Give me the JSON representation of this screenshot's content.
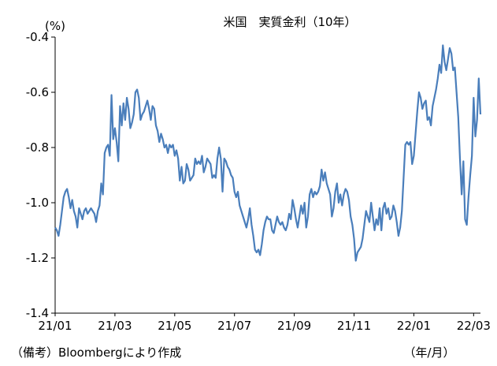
{
  "chart_data": {
    "type": "line",
    "title": "米国　実質金利（10年）",
    "ylabel": "(%)",
    "xlabel": "（年/月）",
    "ylim": [
      -1.4,
      -0.4
    ],
    "yticks": [
      -0.4,
      -0.6,
      -0.8,
      -1.0,
      -1.2,
      -1.4
    ],
    "ytick_labels": [
      "-0.4",
      "-0.6",
      "-0.8",
      "-1.0",
      "-1.2",
      "-1.4"
    ],
    "xticks": [
      "21/01",
      "21/03",
      "21/05",
      "21/07",
      "21/09",
      "21/11",
      "22/01",
      "22/03"
    ],
    "grid": false,
    "legend": "none",
    "source": "（備考）Bloombergにより作成",
    "series": [
      {
        "color": "#4a7ebb",
        "points": [
          [
            0,
            -1.09
          ],
          [
            1,
            -1.1
          ],
          [
            2,
            -1.12
          ],
          [
            3,
            -1.08
          ],
          [
            4,
            -1.03
          ],
          [
            5,
            -0.98
          ],
          [
            6,
            -0.96
          ],
          [
            7,
            -0.95
          ],
          [
            8,
            -0.98
          ],
          [
            9,
            -1.02
          ],
          [
            10,
            -0.99
          ],
          [
            11,
            -1.03
          ],
          [
            12,
            -1.05
          ],
          [
            13,
            -1.09
          ],
          [
            14,
            -1.02
          ],
          [
            15,
            -1.04
          ],
          [
            16,
            -1.06
          ],
          [
            17,
            -1.03
          ],
          [
            18,
            -1.02
          ],
          [
            19,
            -1.04
          ],
          [
            20,
            -1.03
          ],
          [
            21,
            -1.02
          ],
          [
            22,
            -1.03
          ],
          [
            23,
            -1.04
          ],
          [
            24,
            -1.07
          ],
          [
            25,
            -1.03
          ],
          [
            26,
            -1.01
          ],
          [
            27,
            -0.93
          ],
          [
            28,
            -0.97
          ],
          [
            29,
            -0.82
          ],
          [
            30,
            -0.8
          ],
          [
            31,
            -0.79
          ],
          [
            32,
            -0.83
          ],
          [
            33,
            -0.61
          ],
          [
            34,
            -0.77
          ],
          [
            35,
            -0.73
          ],
          [
            36,
            -0.78
          ],
          [
            37,
            -0.85
          ],
          [
            38,
            -0.65
          ],
          [
            39,
            -0.72
          ],
          [
            40,
            -0.64
          ],
          [
            41,
            -0.7
          ],
          [
            42,
            -0.62
          ],
          [
            43,
            -0.66
          ],
          [
            44,
            -0.73
          ],
          [
            45,
            -0.71
          ],
          [
            46,
            -0.68
          ],
          [
            47,
            -0.6
          ],
          [
            48,
            -0.59
          ],
          [
            49,
            -0.62
          ],
          [
            50,
            -0.7
          ],
          [
            51,
            -0.68
          ],
          [
            52,
            -0.67
          ],
          [
            53,
            -0.65
          ],
          [
            54,
            -0.63
          ],
          [
            55,
            -0.66
          ],
          [
            56,
            -0.7
          ],
          [
            57,
            -0.65
          ],
          [
            58,
            -0.66
          ],
          [
            59,
            -0.72
          ],
          [
            60,
            -0.74
          ],
          [
            61,
            -0.78
          ],
          [
            62,
            -0.75
          ],
          [
            63,
            -0.77
          ],
          [
            64,
            -0.8
          ],
          [
            65,
            -0.79
          ],
          [
            66,
            -0.82
          ],
          [
            67,
            -0.79
          ],
          [
            68,
            -0.8
          ],
          [
            69,
            -0.79
          ],
          [
            70,
            -0.83
          ],
          [
            71,
            -0.81
          ],
          [
            72,
            -0.84
          ],
          [
            73,
            -0.92
          ],
          [
            74,
            -0.87
          ],
          [
            75,
            -0.93
          ],
          [
            76,
            -0.92
          ],
          [
            77,
            -0.86
          ],
          [
            78,
            -0.88
          ],
          [
            79,
            -0.92
          ],
          [
            80,
            -0.91
          ],
          [
            81,
            -0.9
          ],
          [
            82,
            -0.84
          ],
          [
            83,
            -0.86
          ],
          [
            84,
            -0.85
          ],
          [
            85,
            -0.86
          ],
          [
            86,
            -0.83
          ],
          [
            87,
            -0.89
          ],
          [
            88,
            -0.87
          ],
          [
            89,
            -0.84
          ],
          [
            90,
            -0.85
          ],
          [
            91,
            -0.86
          ],
          [
            92,
            -0.91
          ],
          [
            93,
            -0.9
          ],
          [
            94,
            -0.91
          ],
          [
            95,
            -0.84
          ],
          [
            96,
            -0.8
          ],
          [
            97,
            -0.84
          ],
          [
            98,
            -0.96
          ],
          [
            99,
            -0.84
          ],
          [
            100,
            -0.85
          ],
          [
            101,
            -0.87
          ],
          [
            102,
            -0.88
          ],
          [
            103,
            -0.9
          ],
          [
            104,
            -0.91
          ],
          [
            105,
            -0.96
          ],
          [
            106,
            -0.98
          ],
          [
            107,
            -0.96
          ],
          [
            108,
            -1.01
          ],
          [
            109,
            -1.03
          ],
          [
            110,
            -1.05
          ],
          [
            111,
            -1.07
          ],
          [
            112,
            -1.09
          ],
          [
            113,
            -1.06
          ],
          [
            114,
            -1.02
          ],
          [
            115,
            -1.08
          ],
          [
            116,
            -1.12
          ],
          [
            117,
            -1.17
          ],
          [
            118,
            -1.18
          ],
          [
            119,
            -1.17
          ],
          [
            120,
            -1.19
          ],
          [
            121,
            -1.15
          ],
          [
            122,
            -1.1
          ],
          [
            123,
            -1.07
          ],
          [
            124,
            -1.05
          ],
          [
            125,
            -1.06
          ],
          [
            126,
            -1.06
          ],
          [
            127,
            -1.1
          ],
          [
            128,
            -1.11
          ],
          [
            129,
            -1.08
          ],
          [
            130,
            -1.05
          ],
          [
            131,
            -1.07
          ],
          [
            132,
            -1.08
          ],
          [
            133,
            -1.07
          ],
          [
            134,
            -1.09
          ],
          [
            135,
            -1.1
          ],
          [
            136,
            -1.08
          ],
          [
            137,
            -1.04
          ],
          [
            138,
            -1.06
          ],
          [
            139,
            -0.99
          ],
          [
            140,
            -1.02
          ],
          [
            141,
            -1.06
          ],
          [
            142,
            -1.09
          ],
          [
            143,
            -1.05
          ],
          [
            144,
            -1.01
          ],
          [
            145,
            -1.04
          ],
          [
            146,
            -1.0
          ],
          [
            147,
            -1.09
          ],
          [
            148,
            -1.05
          ],
          [
            149,
            -0.97
          ],
          [
            150,
            -0.95
          ],
          [
            151,
            -0.98
          ],
          [
            152,
            -0.96
          ],
          [
            153,
            -0.97
          ],
          [
            154,
            -0.96
          ],
          [
            155,
            -0.94
          ],
          [
            156,
            -0.88
          ],
          [
            157,
            -0.92
          ],
          [
            158,
            -0.89
          ],
          [
            159,
            -0.93
          ],
          [
            160,
            -0.95
          ],
          [
            161,
            -0.97
          ],
          [
            162,
            -1.05
          ],
          [
            163,
            -1.02
          ],
          [
            164,
            -0.96
          ],
          [
            165,
            -0.93
          ],
          [
            166,
            -1.0
          ],
          [
            167,
            -0.97
          ],
          [
            168,
            -1.01
          ],
          [
            169,
            -0.97
          ],
          [
            170,
            -0.95
          ],
          [
            171,
            -0.96
          ],
          [
            172,
            -0.99
          ],
          [
            173,
            -1.05
          ],
          [
            174,
            -1.08
          ],
          [
            175,
            -1.13
          ],
          [
            176,
            -1.21
          ],
          [
            177,
            -1.18
          ],
          [
            178,
            -1.17
          ],
          [
            179,
            -1.16
          ],
          [
            180,
            -1.13
          ],
          [
            181,
            -1.08
          ],
          [
            182,
            -1.03
          ],
          [
            183,
            -1.05
          ],
          [
            184,
            -1.07
          ],
          [
            185,
            -1.0
          ],
          [
            186,
            -1.05
          ],
          [
            187,
            -1.1
          ],
          [
            188,
            -1.06
          ],
          [
            189,
            -1.08
          ],
          [
            190,
            -1.02
          ],
          [
            191,
            -1.1
          ],
          [
            192,
            -1.02
          ],
          [
            193,
            -1.0
          ],
          [
            194,
            -1.04
          ],
          [
            195,
            -1.02
          ],
          [
            196,
            -1.06
          ],
          [
            197,
            -1.05
          ],
          [
            198,
            -1.01
          ],
          [
            199,
            -1.03
          ],
          [
            200,
            -1.07
          ],
          [
            201,
            -1.12
          ],
          [
            202,
            -1.09
          ],
          [
            203,
            -1.03
          ],
          [
            204,
            -0.91
          ],
          [
            205,
            -0.79
          ],
          [
            206,
            -0.78
          ],
          [
            207,
            -0.79
          ],
          [
            208,
            -0.78
          ],
          [
            209,
            -0.86
          ],
          [
            210,
            -0.83
          ],
          [
            211,
            -0.75
          ],
          [
            212,
            -0.67
          ],
          [
            213,
            -0.6
          ],
          [
            214,
            -0.62
          ],
          [
            215,
            -0.66
          ],
          [
            216,
            -0.64
          ],
          [
            217,
            -0.63
          ],
          [
            218,
            -0.7
          ],
          [
            219,
            -0.69
          ],
          [
            220,
            -0.72
          ],
          [
            221,
            -0.65
          ],
          [
            222,
            -0.62
          ],
          [
            223,
            -0.59
          ],
          [
            224,
            -0.55
          ],
          [
            225,
            -0.5
          ],
          [
            226,
            -0.53
          ],
          [
            227,
            -0.43
          ],
          [
            228,
            -0.49
          ],
          [
            229,
            -0.52
          ],
          [
            230,
            -0.48
          ],
          [
            231,
            -0.44
          ],
          [
            232,
            -0.46
          ],
          [
            233,
            -0.52
          ],
          [
            234,
            -0.51
          ],
          [
            235,
            -0.6
          ],
          [
            236,
            -0.69
          ],
          [
            237,
            -0.84
          ],
          [
            238,
            -0.97
          ],
          [
            239,
            -0.85
          ],
          [
            240,
            -1.06
          ],
          [
            241,
            -1.08
          ],
          [
            242,
            -0.98
          ],
          [
            243,
            -0.9
          ],
          [
            244,
            -0.83
          ],
          [
            245,
            -0.62
          ],
          [
            246,
            -0.76
          ],
          [
            247,
            -0.7
          ],
          [
            248,
            -0.55
          ],
          [
            249,
            -0.68
          ]
        ],
        "x_tick_positions": [
          0,
          35,
          70,
          105,
          140,
          175,
          210,
          245
        ],
        "x_max": 249
      }
    ]
  }
}
